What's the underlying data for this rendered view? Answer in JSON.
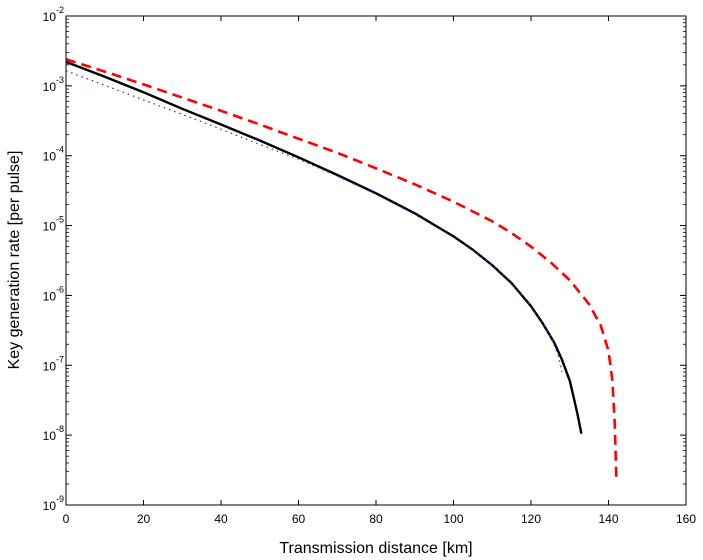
{
  "chart_data": {
    "type": "line",
    "title": "",
    "xlabel": "Transmission distance [km]",
    "ylabel": "Key generation rate [per pulse]",
    "xlim": [
      0,
      160
    ],
    "ylim": [
      1e-09,
      0.01
    ],
    "yscale": "log",
    "grid": false,
    "legend": "none",
    "x_ticks": [
      "0",
      "20",
      "40",
      "60",
      "80",
      "100",
      "120",
      "140",
      "160"
    ],
    "x_tick_values": [
      0,
      20,
      40,
      60,
      80,
      100,
      120,
      140,
      160
    ],
    "y_ticks": [
      {
        "base": "10",
        "exp": "-9",
        "value": 1e-09
      },
      {
        "base": "10",
        "exp": "-8",
        "value": 1e-08
      },
      {
        "base": "10",
        "exp": "-7",
        "value": 1e-07
      },
      {
        "base": "10",
        "exp": "-6",
        "value": 1e-06
      },
      {
        "base": "10",
        "exp": "-5",
        "value": 1e-05
      },
      {
        "base": "10",
        "exp": "-4",
        "value": 0.0001
      },
      {
        "base": "10",
        "exp": "-3",
        "value": 0.001
      },
      {
        "base": "10",
        "exp": "-2",
        "value": 0.01
      }
    ],
    "series": [
      {
        "color": "#000000",
        "style": "solid",
        "x": [
          0,
          10,
          20,
          30,
          40,
          50,
          60,
          70,
          80,
          90,
          100,
          105,
          110,
          115,
          120,
          123,
          126,
          128,
          130,
          131,
          132,
          133
        ],
        "y": [
          0.0022,
          0.00135,
          0.00081,
          0.00047,
          0.00028,
          0.000165,
          9.5e-05,
          5.3e-05,
          2.9e-05,
          1.5e-05,
          7e-06,
          4.5e-06,
          2.7e-06,
          1.5e-06,
          7e-07,
          4e-07,
          2.1e-07,
          1.2e-07,
          6e-08,
          3.5e-08,
          2e-08,
          1.05e-08
        ]
      },
      {
        "color": "#ff0000",
        "style": "dashed",
        "x": [
          0,
          10,
          20,
          30,
          40,
          50,
          60,
          70,
          80,
          90,
          100,
          110,
          115,
          120,
          125,
          130,
          135,
          138,
          140,
          141,
          141.6,
          142
        ],
        "y": [
          0.0024,
          0.0016,
          0.00105,
          0.00068,
          0.00044,
          0.00028,
          0.000175,
          0.00011,
          6.6e-05,
          3.9e-05,
          2.2e-05,
          1.15e-05,
          7.8e-06,
          5e-06,
          3e-06,
          1.65e-06,
          7.5e-07,
          3.7e-07,
          1.6e-07,
          6e-08,
          1.5e-08,
          2.5e-09
        ]
      },
      {
        "color": "#1f3fd6",
        "style": "dotted",
        "x": [
          0,
          10,
          20,
          30,
          40,
          50,
          60,
          70,
          80,
          90,
          100,
          105,
          110,
          115,
          120,
          123,
          125,
          127,
          128
        ],
        "y": [
          0.00165,
          0.00102,
          0.00063,
          0.00039,
          0.00024,
          0.000145,
          8.9e-05,
          5.1e-05,
          2.8e-05,
          1.45e-05,
          6.8e-06,
          4.4e-06,
          2.7e-06,
          1.55e-06,
          7e-07,
          4e-07,
          2.6e-07,
          1.4e-07,
          8e-08
        ]
      }
    ]
  }
}
